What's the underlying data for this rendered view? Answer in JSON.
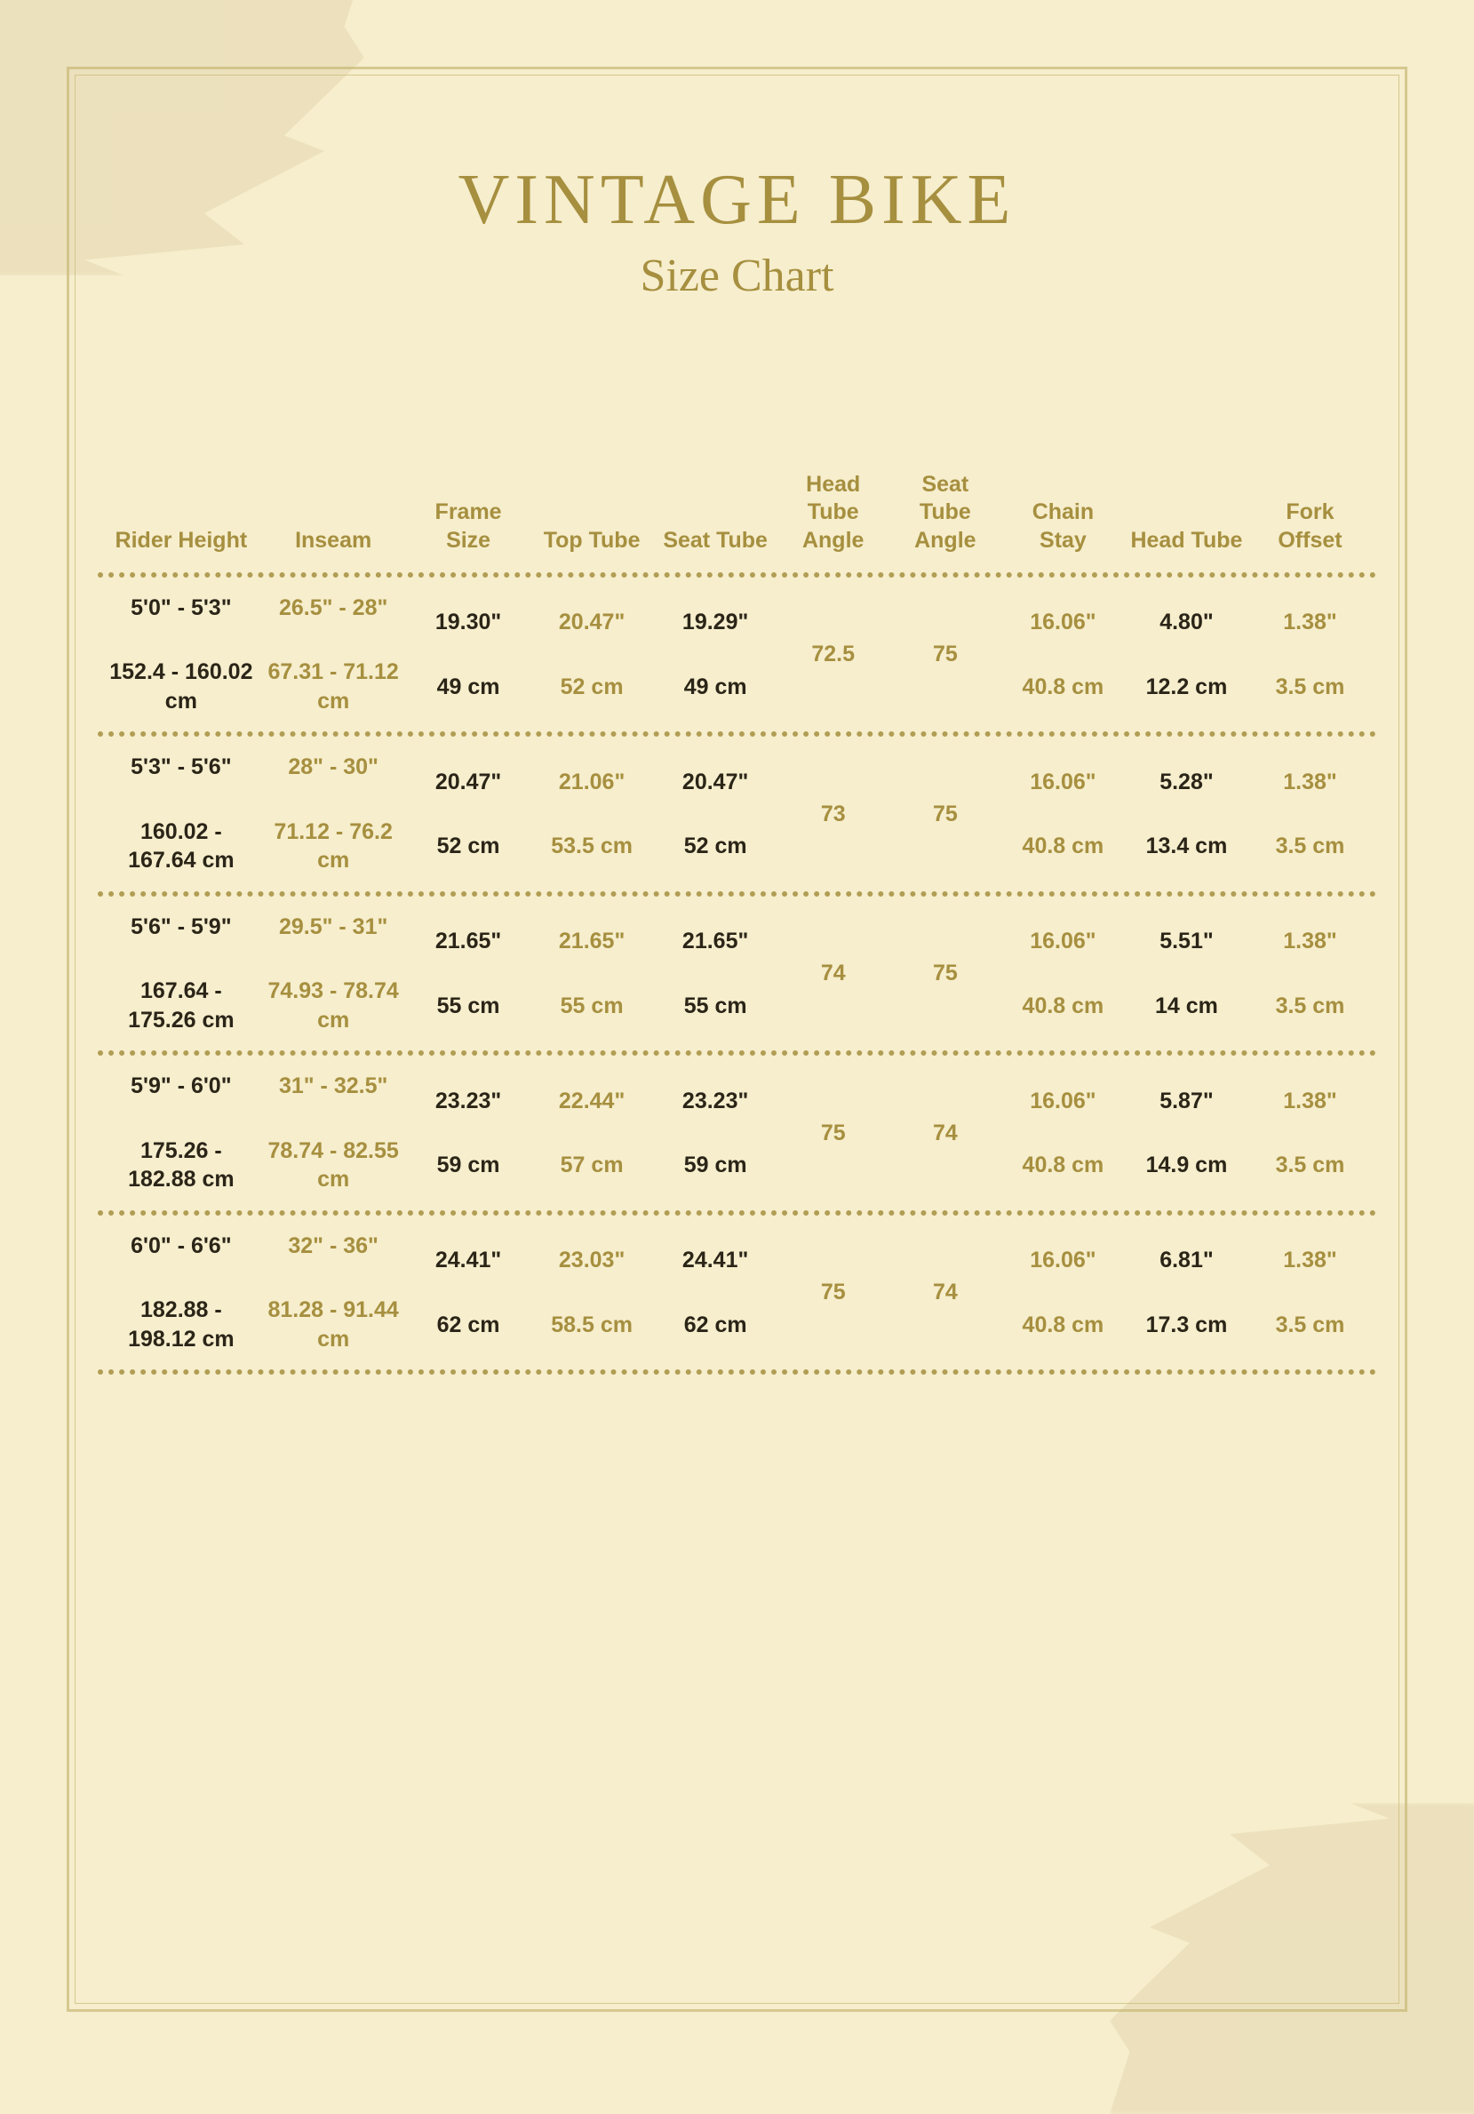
{
  "title": "VINTAGE BIKE",
  "subtitle": "Size Chart",
  "columns": [
    "Rider Height",
    "Inseam",
    "Frame Size",
    "Top Tube",
    "Seat Tube",
    "Head Tube Angle",
    "Seat Tube Angle",
    "Chain Stay",
    "Head Tube",
    "Fork Offset"
  ],
  "column_colors": {
    "header": "#a68f3f",
    "dark": "#2b2518",
    "gold": "#a68f3f"
  },
  "rows": [
    {
      "rider_imp": "5'0\" - 5'3\"",
      "rider_met": "152.4 - 160.02 cm",
      "inseam_imp": "26.5\" - 28\"",
      "inseam_met": "67.31 - 71.12 cm",
      "frame_imp": "19.30\"",
      "frame_met": "49 cm",
      "top_imp": "20.47\"",
      "top_met": "52 cm",
      "seat_imp": "19.29\"",
      "seat_met": "49 cm",
      "head_angle": "72.5",
      "seat_angle": "75",
      "chain_imp": "16.06\"",
      "chain_met": "40.8 cm",
      "headtube_imp": "4.80\"",
      "headtube_met": "12.2 cm",
      "fork_imp": "1.38\"",
      "fork_met": "3.5 cm"
    },
    {
      "rider_imp": "5'3\" - 5'6\"",
      "rider_met": "160.02 - 167.64 cm",
      "inseam_imp": "28\" - 30\"",
      "inseam_met": "71.12 - 76.2 cm",
      "frame_imp": "20.47\"",
      "frame_met": "52 cm",
      "top_imp": "21.06\"",
      "top_met": "53.5 cm",
      "seat_imp": "20.47\"",
      "seat_met": "52 cm",
      "head_angle": "73",
      "seat_angle": "75",
      "chain_imp": "16.06\"",
      "chain_met": "40.8 cm",
      "headtube_imp": "5.28\"",
      "headtube_met": "13.4 cm",
      "fork_imp": "1.38\"",
      "fork_met": "3.5 cm"
    },
    {
      "rider_imp": "5'6\" - 5'9\"",
      "rider_met": "167.64 - 175.26 cm",
      "inseam_imp": "29.5\" - 31\"",
      "inseam_met": "74.93 - 78.74 cm",
      "frame_imp": "21.65\"",
      "frame_met": "55 cm",
      "top_imp": "21.65\"",
      "top_met": "55 cm",
      "seat_imp": "21.65\"",
      "seat_met": "55 cm",
      "head_angle": "74",
      "seat_angle": "75",
      "chain_imp": "16.06\"",
      "chain_met": "40.8 cm",
      "headtube_imp": "5.51\"",
      "headtube_met": "14 cm",
      "fork_imp": "1.38\"",
      "fork_met": "3.5 cm"
    },
    {
      "rider_imp": "5'9\" - 6'0\"",
      "rider_met": "175.26  - 182.88 cm",
      "inseam_imp": "31\" - 32.5\"",
      "inseam_met": "78.74 - 82.55 cm",
      "frame_imp": "23.23\"",
      "frame_met": "59 cm",
      "top_imp": "22.44\"",
      "top_met": "57 cm",
      "seat_imp": "23.23\"",
      "seat_met": "59 cm",
      "head_angle": "75",
      "seat_angle": "74",
      "chain_imp": "16.06\"",
      "chain_met": "40.8 cm",
      "headtube_imp": "5.87\"",
      "headtube_met": "14.9 cm",
      "fork_imp": "1.38\"",
      "fork_met": "3.5 cm"
    },
    {
      "rider_imp": "6'0\" - 6'6\"",
      "rider_met": "182.88 - 198.12 cm",
      "inseam_imp": "32\" - 36\"",
      "inseam_met": "81.28 - 91.44 cm",
      "frame_imp": "24.41\"",
      "frame_met": "62 cm",
      "top_imp": "23.03\"",
      "top_met": "58.5 cm",
      "seat_imp": "24.41\"",
      "seat_met": "62 cm",
      "head_angle": "75",
      "seat_angle": "74",
      "chain_imp": "16.06\"",
      "chain_met": "40.8 cm",
      "headtube_imp": "6.81\"",
      "headtube_met": "17.3 cm",
      "fork_imp": "1.38\"",
      "fork_met": "3.5 cm"
    }
  ],
  "style": {
    "background": "#f6eecd",
    "border_color": "#c9b875",
    "dot_color": "#a68f3f",
    "title_fontsize": 80,
    "subtitle_fontsize": 52,
    "header_fontsize": 25,
    "cell_fontsize": 25,
    "col_gold": [
      1,
      3,
      5,
      6,
      7,
      9
    ],
    "col_dark": [
      0,
      2,
      4,
      8
    ]
  }
}
